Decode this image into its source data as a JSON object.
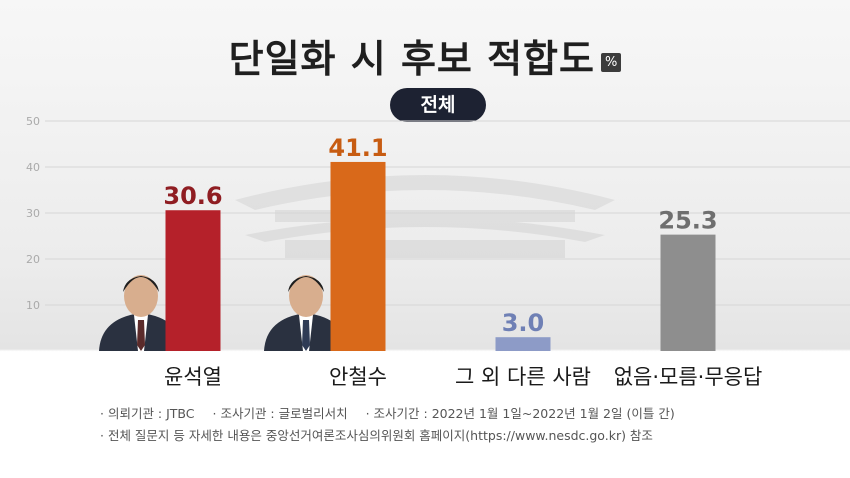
{
  "header": {
    "title": "단일화 시 후보 적합도",
    "unit": "%",
    "subtitle": "전체"
  },
  "chart_data": {
    "type": "bar",
    "title": "단일화 시 후보 적합도",
    "subtitle": "전체",
    "unit": "%",
    "categories": [
      "윤석열",
      "안철수",
      "그 외 다른 사람",
      "없음·모름·무응답"
    ],
    "values": [
      30.6,
      41.1,
      3.0,
      25.3
    ],
    "value_labels": [
      "30.6",
      "41.1",
      "3.0",
      "25.3"
    ],
    "ylim": [
      0,
      50
    ],
    "yticks": [
      10,
      20,
      30,
      40,
      50
    ],
    "ytick_labels": [
      "10",
      "20",
      "30",
      "40",
      "50"
    ],
    "grid": true,
    "legend": "none",
    "colors": [
      "#b5212a",
      "#d9691a",
      "#8d9bc7",
      "#8e8e8e"
    ],
    "label_colors": [
      "#8f1d22",
      "#c75c12",
      "#6f80b5",
      "#6f6f6f"
    ]
  },
  "footer": {
    "line1": [
      "· 의뢰기관 : JTBC",
      "· 조사기관 : 글로벌리서치",
      "· 조사기간 : 2022년 1월 1일~2022년 1월 2일 (이틀 간)"
    ],
    "line2": "· 전체 질문지 등 자세한 내용은 중앙선거여론조사심의위원회 홈페이지(https://www.nesdc.go.kr) 참조"
  }
}
